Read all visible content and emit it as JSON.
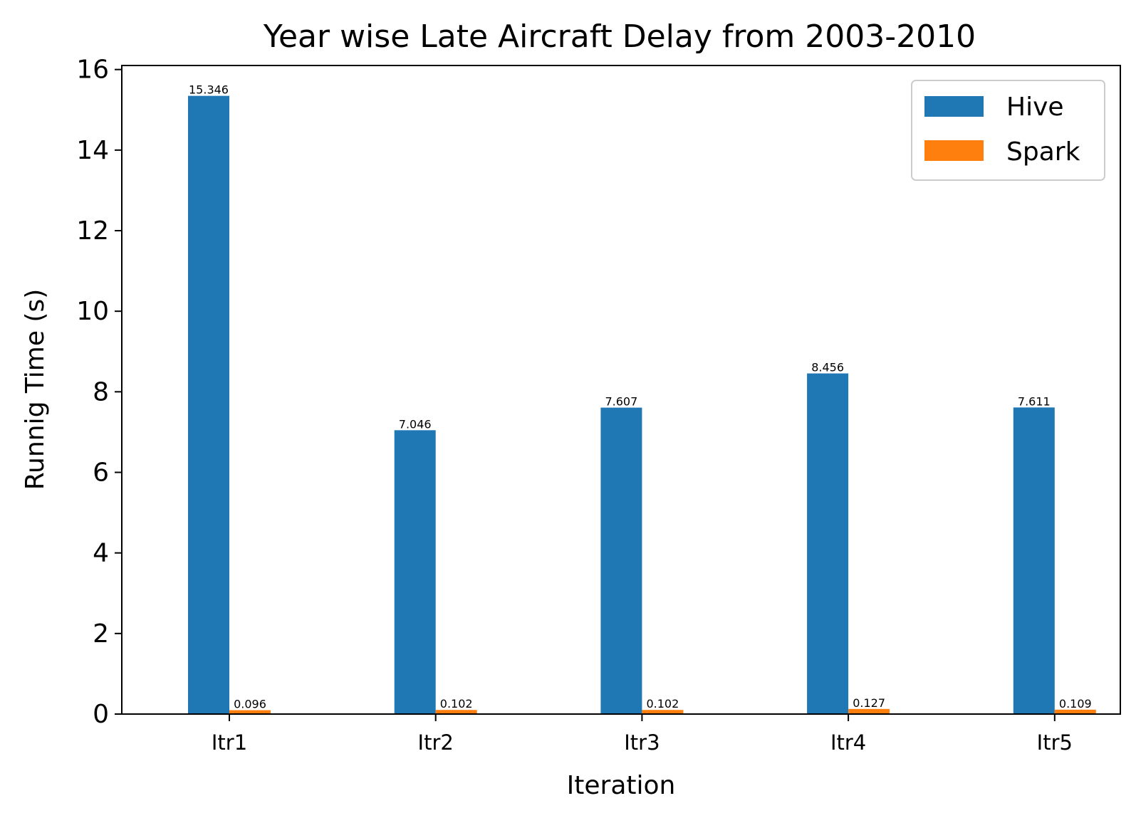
{
  "chart_data": {
    "type": "bar",
    "title": "Year wise Late Aircraft Delay from 2003-2010",
    "xlabel": "Iteration",
    "ylabel": "Runnig Time (s)",
    "categories": [
      "Itr1",
      "Itr2",
      "Itr3",
      "Itr4",
      "Itr5"
    ],
    "series": [
      {
        "name": "Hive",
        "color": "#1f77b4",
        "values": [
          15.346,
          7.046,
          7.607,
          8.456,
          7.611
        ],
        "labels": [
          "15.346",
          "7.046",
          "7.607",
          "8.456",
          "7.611"
        ]
      },
      {
        "name": "Spark",
        "color": "#ff7f0e",
        "values": [
          0.096,
          0.102,
          0.102,
          0.127,
          0.109
        ],
        "labels": [
          "0.096",
          "0.102",
          "0.102",
          "0.127",
          "0.109"
        ]
      }
    ],
    "ylim": [
      0,
      16.1
    ],
    "yticks": [
      "0",
      "2",
      "4",
      "6",
      "8",
      "10",
      "12",
      "14",
      "16"
    ],
    "grid": false,
    "legend_position": "top-right"
  }
}
